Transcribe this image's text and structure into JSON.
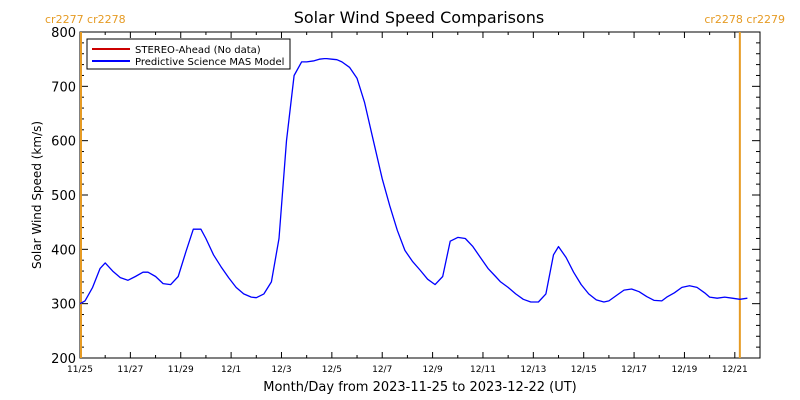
{
  "chart_data": {
    "type": "line",
    "title": "Solar Wind Speed Comparisons",
    "xlabel": "Month/Day from 2023-11-25 to 2023-12-22 (UT)",
    "ylabel": "Solar Wind Speed (km/s)",
    "x_tick_labels": [
      "11/25",
      "11/27",
      "11/29",
      "12/1",
      "12/3",
      "12/5",
      "12/7",
      "12/9",
      "12/11",
      "12/13",
      "12/15",
      "12/17",
      "12/19",
      "12/21"
    ],
    "y_ticks": [
      200,
      300,
      400,
      500,
      600,
      700,
      800
    ],
    "ylim": [
      200,
      800
    ],
    "xlim_days": [
      0,
      27
    ],
    "grid": false,
    "legend_position": "top-left",
    "carrington_labels": {
      "left": "cr2277 cr2278",
      "right": "cr2278 cr2279"
    },
    "carrington_marker_days": [
      0,
      26.2
    ],
    "series": [
      {
        "name": "STEREO-Ahead (No data)",
        "color": "#cc0000",
        "x": [],
        "values": []
      },
      {
        "name": "Predictive Science MAS Model",
        "color": "#0000ff",
        "x": [
          0.0,
          0.2,
          0.5,
          0.8,
          1.0,
          1.3,
          1.6,
          1.9,
          2.2,
          2.5,
          2.7,
          3.0,
          3.3,
          3.6,
          3.9,
          4.2,
          4.5,
          4.8,
          5.0,
          5.3,
          5.6,
          5.9,
          6.2,
          6.5,
          6.8,
          7.0,
          7.3,
          7.6,
          7.9,
          8.2,
          8.5,
          8.8,
          9.0,
          9.3,
          9.5,
          9.7,
          9.8,
          10.0,
          10.2,
          10.4,
          10.7,
          11.0,
          11.3,
          11.6,
          12.0,
          12.3,
          12.6,
          12.9,
          13.2,
          13.5,
          13.8,
          14.1,
          14.4,
          14.7,
          15.0,
          15.3,
          15.6,
          15.9,
          16.2,
          16.5,
          16.7,
          17.0,
          17.3,
          17.6,
          17.9,
          18.2,
          18.5,
          18.8,
          19.0,
          19.3,
          19.6,
          19.9,
          20.2,
          20.5,
          20.8,
          21.0,
          21.3,
          21.6,
          21.9,
          22.2,
          22.5,
          22.8,
          23.1,
          23.3,
          23.6,
          23.9,
          24.2,
          24.5,
          24.8,
          25.0,
          25.3,
          25.6,
          25.9,
          26.2,
          26.5
        ],
        "values": [
          300,
          305,
          330,
          365,
          375,
          360,
          348,
          343,
          350,
          358,
          358,
          350,
          337,
          335,
          350,
          395,
          437,
          437,
          420,
          390,
          368,
          348,
          330,
          318,
          312,
          311,
          318,
          340,
          420,
          600,
          720,
          745,
          745,
          747,
          750,
          751,
          751,
          750,
          749,
          745,
          735,
          715,
          670,
          610,
          530,
          480,
          435,
          398,
          378,
          362,
          345,
          335,
          350,
          415,
          422,
          420,
          405,
          385,
          365,
          350,
          340,
          330,
          318,
          308,
          303,
          303,
          318,
          390,
          405,
          385,
          358,
          335,
          318,
          307,
          303,
          305,
          315,
          325,
          327,
          322,
          313,
          306,
          305,
          312,
          320,
          330,
          333,
          330,
          320,
          312,
          310,
          312,
          310,
          308,
          310
        ]
      }
    ]
  }
}
